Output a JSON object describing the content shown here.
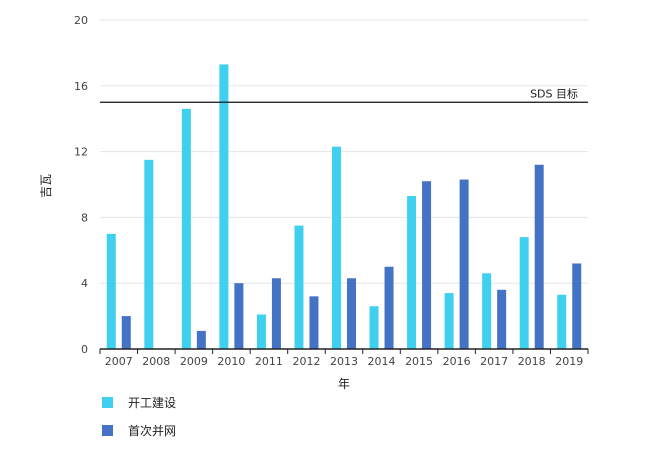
{
  "chart_data": {
    "type": "bar",
    "title": "",
    "xlabel": "年",
    "ylabel": "吉瓦",
    "ylim": [
      0,
      20
    ],
    "yticks": [
      0,
      4,
      8,
      12,
      16,
      20
    ],
    "grid": true,
    "legend_position": "bottom-left",
    "categories": [
      "2007",
      "2008",
      "2009",
      "2010",
      "2011",
      "2012",
      "2013",
      "2014",
      "2015",
      "2016",
      "2017",
      "2018",
      "2019"
    ],
    "series": [
      {
        "name": "开工建设",
        "color": "#3fd0f0",
        "values": [
          7.0,
          11.5,
          14.6,
          17.3,
          2.1,
          7.5,
          12.3,
          2.6,
          9.3,
          3.4,
          4.6,
          6.8,
          3.3
        ]
      },
      {
        "name": "首次并网",
        "color": "#4472c4",
        "values": [
          2.0,
          0,
          1.1,
          4.0,
          4.3,
          3.2,
          4.3,
          5.0,
          10.2,
          10.3,
          3.6,
          11.2,
          5.2
        ]
      }
    ],
    "reference_line": {
      "value": 15,
      "label": "SDS 目标"
    }
  }
}
